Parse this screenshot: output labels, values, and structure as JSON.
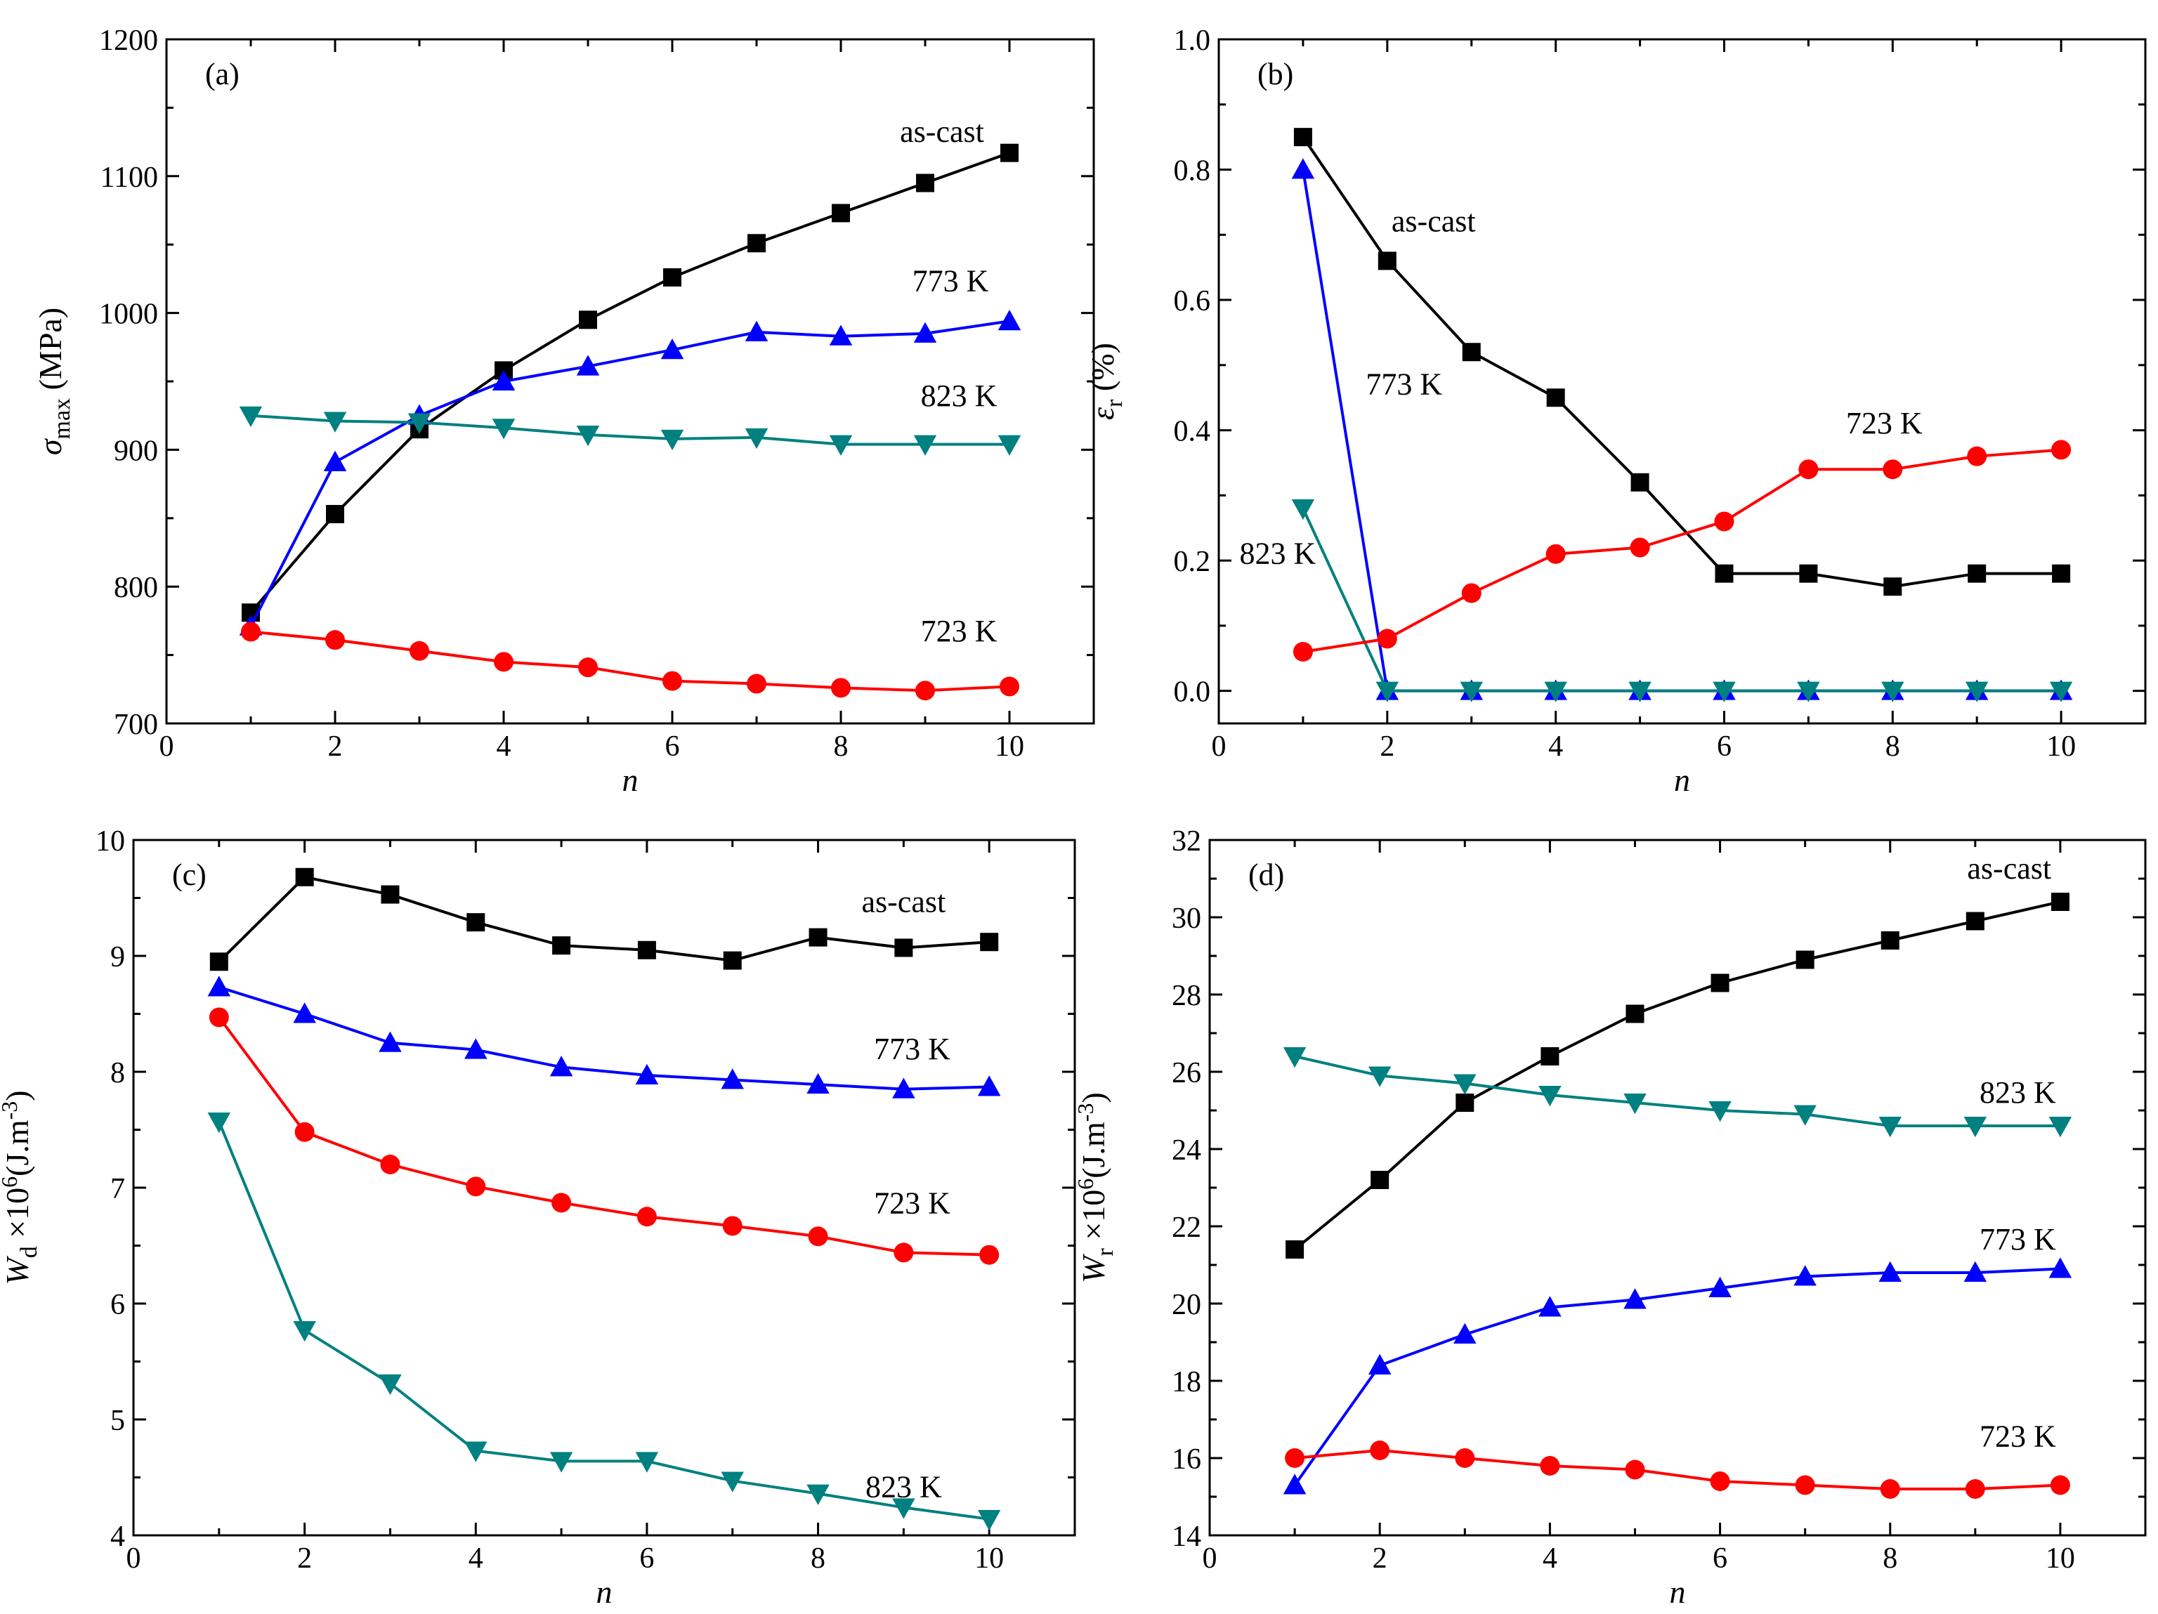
{
  "chart_data": [
    {
      "type": "line",
      "panel_label": "(a)",
      "xlabel": "n",
      "ylabel": {
        "main": "σ",
        "sub": "max",
        "rest": " (MPa)"
      },
      "xlim": [
        0,
        11
      ],
      "ylim": [
        700,
        1200
      ],
      "xticks": [
        0,
        2,
        4,
        6,
        8,
        10
      ],
      "yticks": [
        700,
        800,
        900,
        1000,
        1100,
        1200
      ],
      "ytick_labels": [
        "700",
        "800",
        "900",
        "1000",
        "1100",
        "1200"
      ],
      "x": [
        1,
        2,
        3,
        4,
        5,
        6,
        7,
        8,
        9,
        10
      ],
      "series": [
        {
          "name": "as-cast",
          "color": "#000000",
          "marker": "square",
          "values": [
            781,
            853,
            915,
            958,
            995,
            1026,
            1051,
            1073,
            1095,
            1117
          ],
          "label": {
            "text": "as-cast",
            "x": 9.2,
            "y": 1125
          }
        },
        {
          "name": "773 K",
          "color": "#0000ff",
          "marker": "triangle-up",
          "values": [
            771,
            891,
            925,
            950,
            961,
            973,
            986,
            983,
            985,
            994
          ],
          "label": {
            "text": "773 K",
            "x": 9.3,
            "y": 1016
          }
        },
        {
          "name": "823 K",
          "color": "#008080",
          "marker": "triangle-down",
          "values": [
            925,
            921,
            920,
            916,
            911,
            908,
            909,
            904,
            904,
            904
          ],
          "label": {
            "text": "823 K",
            "x": 9.4,
            "y": 932
          }
        },
        {
          "name": "723 K",
          "color": "#ff0000",
          "marker": "circle",
          "values": [
            767,
            761,
            753,
            745,
            741,
            731,
            729,
            726,
            724,
            727
          ],
          "label": {
            "text": "723 K",
            "x": 9.4,
            "y": 760
          }
        }
      ]
    },
    {
      "type": "line",
      "panel_label": "(b)",
      "xlabel": "n",
      "ylabel": {
        "main": "ε",
        "sub": "r",
        "rest": " (%)"
      },
      "xlim": [
        0,
        11
      ],
      "ylim": [
        -0.05,
        1.0
      ],
      "xticks": [
        0,
        2,
        4,
        6,
        8,
        10
      ],
      "yticks": [
        0.0,
        0.2,
        0.4,
        0.6,
        0.8,
        1.0
      ],
      "ytick_labels": [
        "0.0",
        "0.2",
        "0.4",
        "0.6",
        "0.8",
        "1.0"
      ],
      "x": [
        1,
        2,
        3,
        4,
        5,
        6,
        7,
        8,
        9,
        10
      ],
      "series": [
        {
          "name": "as-cast",
          "color": "#000000",
          "marker": "square",
          "values": [
            0.85,
            0.66,
            0.52,
            0.45,
            0.32,
            0.18,
            0.18,
            0.16,
            0.18,
            0.18
          ],
          "label": {
            "text": "as-cast",
            "x": 2.55,
            "y": 0.705
          }
        },
        {
          "name": "773 K",
          "color": "#0000ff",
          "marker": "triangle-up",
          "values": [
            0.8,
            0.0,
            0.0,
            0.0,
            0.0,
            0.0,
            0.0,
            0.0,
            0.0,
            0.0
          ],
          "label": {
            "text": "773 K",
            "x": 2.2,
            "y": 0.455
          }
        },
        {
          "name": "823 K",
          "color": "#008080",
          "marker": "triangle-down",
          "values": [
            0.28,
            0.0,
            0.0,
            0.0,
            0.0,
            0.0,
            0.0,
            0.0,
            0.0,
            0.0
          ],
          "label": {
            "text": "823 K",
            "x": 0.7,
            "y": 0.195
          }
        },
        {
          "name": "723 K",
          "color": "#ff0000",
          "marker": "circle",
          "values": [
            0.06,
            0.08,
            0.15,
            0.21,
            0.22,
            0.26,
            0.34,
            0.34,
            0.36,
            0.37
          ],
          "label": {
            "text": "723 K",
            "x": 7.9,
            "y": 0.395
          }
        }
      ]
    },
    {
      "type": "line",
      "panel_label": "(c)",
      "xlabel": "n",
      "ylabel": {
        "main": "W",
        "sub": "d",
        "rest": " ×10",
        "sup": "6",
        "rest2": "(J.m",
        "sup2": "-3",
        "rest3": ")"
      },
      "xlim": [
        0,
        11
      ],
      "ylim": [
        4,
        10
      ],
      "xticks": [
        0,
        2,
        4,
        6,
        8,
        10
      ],
      "yticks": [
        4,
        5,
        6,
        7,
        8,
        9,
        10
      ],
      "ytick_labels": [
        "4",
        "5",
        "6",
        "7",
        "8",
        "9",
        "10"
      ],
      "x": [
        1,
        2,
        3,
        4,
        5,
        6,
        7,
        8,
        9,
        10
      ],
      "series": [
        {
          "name": "as-cast",
          "color": "#000000",
          "marker": "square",
          "values": [
            8.95,
            9.68,
            9.53,
            9.29,
            9.09,
            9.05,
            8.96,
            9.16,
            9.07,
            9.12
          ],
          "label": {
            "text": "as-cast",
            "x": 9.0,
            "y": 9.38
          }
        },
        {
          "name": "773 K",
          "color": "#0000ff",
          "marker": "triangle-up",
          "values": [
            8.73,
            8.5,
            8.25,
            8.19,
            8.04,
            7.97,
            7.93,
            7.89,
            7.85,
            7.87
          ],
          "label": {
            "text": "773 K",
            "x": 9.1,
            "y": 8.11
          }
        },
        {
          "name": "723 K",
          "color": "#ff0000",
          "marker": "circle",
          "values": [
            8.47,
            7.48,
            7.2,
            7.01,
            6.87,
            6.75,
            6.67,
            6.58,
            6.44,
            6.42
          ],
          "label": {
            "text": "723 K",
            "x": 9.1,
            "y": 6.78
          }
        },
        {
          "name": "823 K",
          "color": "#008080",
          "marker": "triangle-down",
          "values": [
            7.57,
            5.77,
            5.31,
            4.73,
            4.64,
            4.64,
            4.47,
            4.36,
            4.24,
            4.14
          ],
          "label": {
            "text": "823 K",
            "x": 9.0,
            "y": 4.33
          }
        }
      ]
    },
    {
      "type": "line",
      "panel_label": "(d)",
      "xlabel": "n",
      "ylabel": {
        "main": "W",
        "sub": "r",
        "rest": " ×10",
        "sup": "6",
        "rest2": "(J.m",
        "sup2": "-3",
        "rest3": ")"
      },
      "xlim": [
        0,
        11
      ],
      "ylim": [
        14,
        32
      ],
      "xticks": [
        0,
        2,
        4,
        6,
        8,
        10
      ],
      "yticks": [
        14,
        16,
        18,
        20,
        22,
        24,
        26,
        28,
        30,
        32
      ],
      "ytick_labels": [
        "14",
        "16",
        "18",
        "20",
        "22",
        "24",
        "26",
        "28",
        "30",
        "32"
      ],
      "x": [
        1,
        2,
        3,
        4,
        5,
        6,
        7,
        8,
        9,
        10
      ],
      "series": [
        {
          "name": "as-cast",
          "color": "#000000",
          "marker": "square",
          "values": [
            21.4,
            23.2,
            25.2,
            26.4,
            27.5,
            28.3,
            28.9,
            29.4,
            29.9,
            30.4
          ],
          "label": {
            "text": "as-cast",
            "x": 9.4,
            "y": 31.0
          }
        },
        {
          "name": "823 K",
          "color": "#008080",
          "marker": "triangle-down",
          "values": [
            26.4,
            25.9,
            25.7,
            25.4,
            25.2,
            25.0,
            24.9,
            24.6,
            24.6,
            24.6
          ],
          "label": {
            "text": "823 K",
            "x": 9.5,
            "y": 25.2
          }
        },
        {
          "name": "773 K",
          "color": "#0000ff",
          "marker": "triangle-up",
          "values": [
            15.3,
            18.4,
            19.2,
            19.9,
            20.1,
            20.4,
            20.7,
            20.8,
            20.8,
            20.9
          ],
          "label": {
            "text": "773 K",
            "x": 9.5,
            "y": 21.4
          }
        },
        {
          "name": "723 K",
          "color": "#ff0000",
          "marker": "circle",
          "values": [
            16.0,
            16.2,
            16.0,
            15.8,
            15.7,
            15.4,
            15.3,
            15.2,
            15.2,
            15.3
          ],
          "label": {
            "text": "723 K",
            "x": 9.5,
            "y": 16.3
          }
        }
      ]
    }
  ]
}
